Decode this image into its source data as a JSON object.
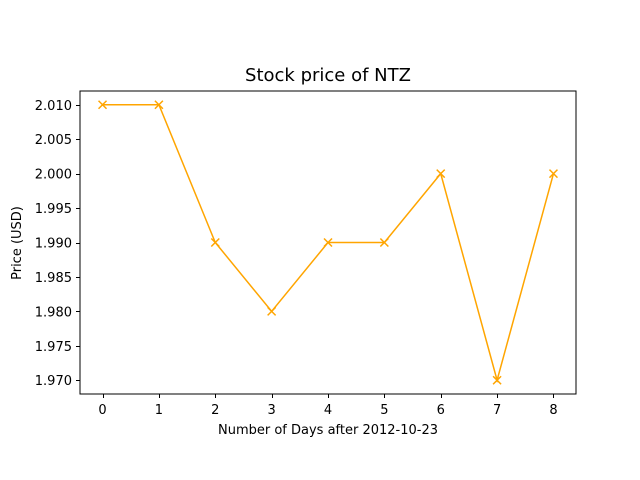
{
  "chart_data": {
    "type": "line",
    "title": "Stock price of NTZ",
    "xlabel": "Number of Days after 2012-10-23",
    "ylabel": "Price (USD)",
    "x": [
      0,
      1,
      2,
      3,
      4,
      5,
      6,
      7,
      8
    ],
    "series": [
      {
        "values": [
          2.01,
          2.01,
          1.99,
          1.98,
          1.99,
          1.99,
          2.0,
          1.97,
          2.0
        ],
        "color": "#FFA500",
        "marker": "x"
      }
    ],
    "xlim": [
      -0.4,
      8.4
    ],
    "ylim": [
      1.968,
      2.012
    ],
    "xticks": [
      0,
      1,
      2,
      3,
      4,
      5,
      6,
      7,
      8
    ],
    "xtick_labels": [
      "0",
      "1",
      "2",
      "3",
      "4",
      "5",
      "6",
      "7",
      "8"
    ],
    "yticks": [
      1.97,
      1.975,
      1.98,
      1.985,
      1.99,
      1.995,
      2.0,
      2.005,
      2.01
    ],
    "ytick_labels": [
      "1.970",
      "1.975",
      "1.980",
      "1.985",
      "1.990",
      "1.995",
      "2.000",
      "2.005",
      "2.010"
    ],
    "grid": false,
    "legend": null
  }
}
